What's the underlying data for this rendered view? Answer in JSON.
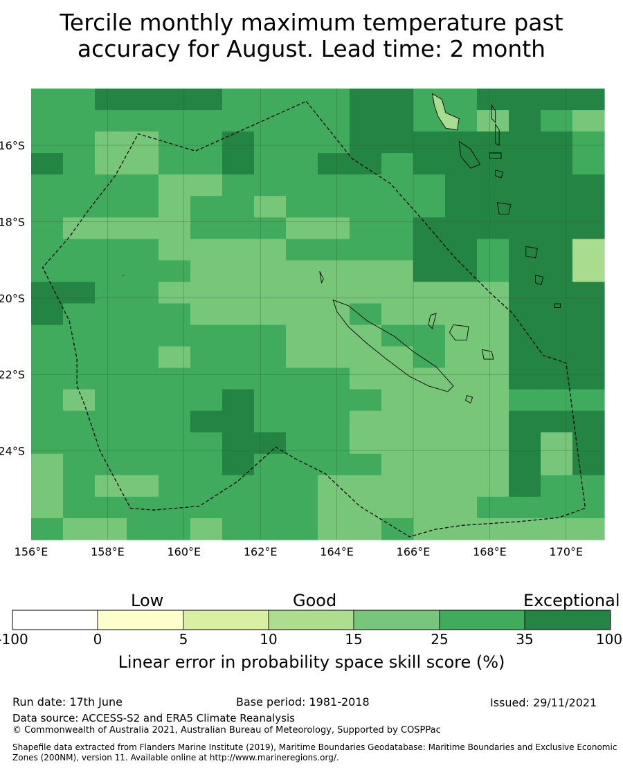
{
  "title": {
    "line1": "Tercile monthly maximum temperature past",
    "line2": "accuracy for August. Lead time: 2 month"
  },
  "map": {
    "lat_labels": [
      "16°S",
      "18°S",
      "20°S",
      "22°S",
      "24°S"
    ],
    "lon_labels": [
      "156°E",
      "158°E",
      "160°E",
      "162°E",
      "164°E",
      "166°E",
      "168°E",
      "170°E"
    ],
    "extent": {
      "lon_min": 156,
      "lon_max": 171,
      "lat_top": -14.5,
      "lat_bottom": -26.3
    },
    "grid_columns": 18,
    "grid_rows": 21,
    "skill_class_grid": [
      "445555444455445555",
      "444444444455443543",
      "443344544455555554",
      "543344544554555554",
      "444433444444455555",
      "444434434444455555",
      "433334443344555555",
      "444433334444554552",
      "444443333333554552",
      "554433333333333555",
      "544443333343333555",
      "444444443334433555",
      "444434443333433555",
      "444444444433333555",
      "434444544443333444",
      "444445544433333555",
      "444444554433333535",
      "344444544443333535",
      "343344444333333544",
      "344444444333334444",
      "433443444334333333"
    ],
    "colors": {
      "c2": "#a9dc8e",
      "c3": "#78c679",
      "c4": "#41ab5d",
      "c5": "#238443",
      "eez_line": "#000000",
      "gridline": "#2e5f2e"
    }
  },
  "colorbar": {
    "categories": [
      "Low",
      "Good",
      "Exceptional"
    ],
    "bins": [
      {
        "color": "#ffffff"
      },
      {
        "color": "#ffffcc"
      },
      {
        "color": "#d9f0a3"
      },
      {
        "color": "#addd8e"
      },
      {
        "color": "#78c679"
      },
      {
        "color": "#41ab5d"
      },
      {
        "color": "#238443"
      }
    ],
    "ticks": [
      "-100",
      "0",
      "5",
      "10",
      "15",
      "25",
      "35",
      "100"
    ],
    "label": "Linear error in probability space skill score (%)"
  },
  "footer": {
    "run_date": "Run date: 17th June",
    "base_period": "Base period: 1981-2018",
    "issued": "Issued: 29/11/2021",
    "data_source": "Data source: ACCESS-S2 and ERA5 Climate Reanalysis",
    "copyright": "© Commonwealth of Australia 2021, Australian Bureau of Meteorology, Supported by COSPPac",
    "shapefile_line1": "Shapefile data extracted from Flanders Marine Institute (2019), Maritime Boundaries Geodatabase: Maritime Boundaries and Exclusive Economic",
    "shapefile_line2": "Zones (200NM), version 11. Available online at http://www.marineregions.org/."
  }
}
